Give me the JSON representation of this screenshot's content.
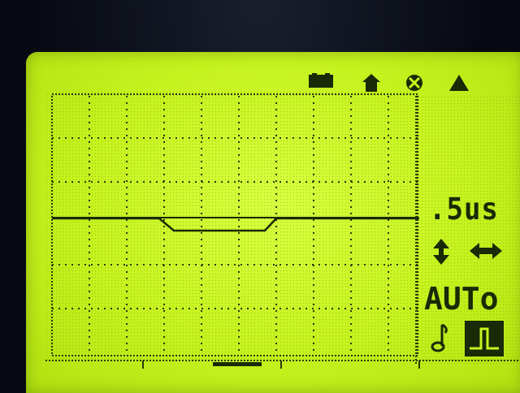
{
  "status_icons": {
    "battery": "battery-icon",
    "home": "home-icon",
    "cancel": "cancel-circle-icon",
    "warning": "triangle-icon"
  },
  "panel": {
    "timebase_label": ".5us",
    "mode_label": "AUTo",
    "vertical_control": "vertical-arrow-icon",
    "horizontal_control": "horizontal-arrow-icon",
    "trigger_symbol": "music-note-icon"
  },
  "colors": {
    "lcd_background": "#c8f41e",
    "ink": "#1a2a06",
    "bezel": "#070a12"
  }
}
